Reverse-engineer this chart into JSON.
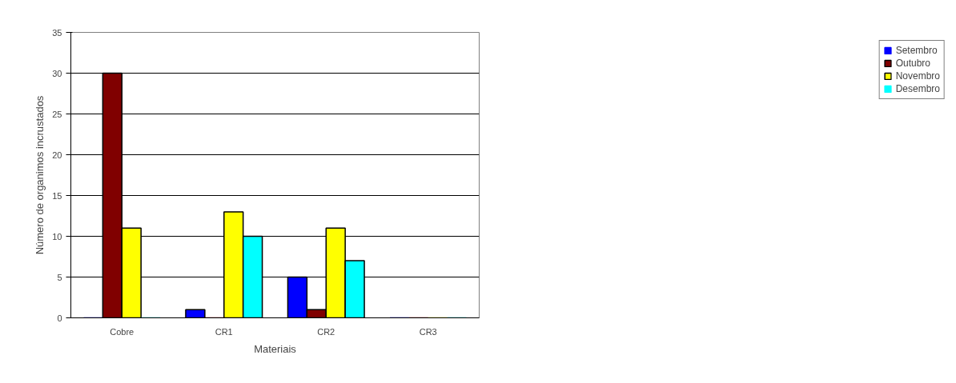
{
  "chart_data": {
    "type": "bar",
    "xlabel": "Materiais",
    "ylabel": "Número de organimos incrustados",
    "categories": [
      "Cobre",
      "CR1",
      "CR2",
      "CR3"
    ],
    "series": [
      {
        "name": "Setembro",
        "color": "#0000ff",
        "values": [
          0,
          1,
          5,
          0
        ]
      },
      {
        "name": "Outubro",
        "color": "#800000",
        "values": [
          30,
          0,
          1,
          0
        ]
      },
      {
        "name": "Novembro",
        "color": "#ffff00",
        "values": [
          11,
          13,
          11,
          0
        ]
      },
      {
        "name": "Desembro",
        "color": "#00ffff",
        "values": [
          0,
          10,
          7,
          0
        ]
      }
    ],
    "ylim": [
      0,
      35
    ],
    "yticks": [
      0,
      5,
      10,
      15,
      20,
      25,
      30,
      35
    ],
    "grid": "y",
    "legend": "right"
  }
}
